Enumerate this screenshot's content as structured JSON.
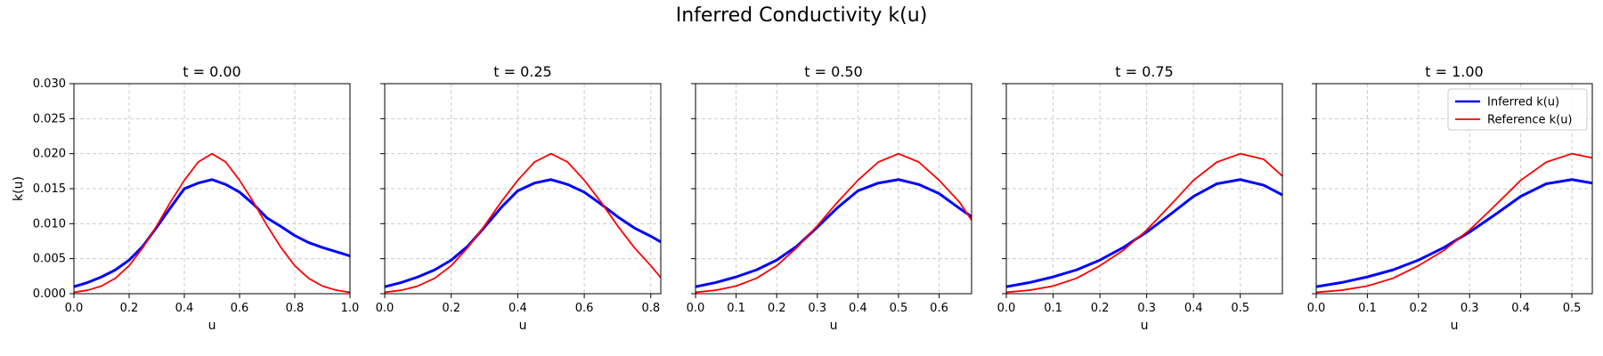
{
  "figure": {
    "title": "Inferred Conductivity k(u)"
  },
  "legend": {
    "inferred": "Inferred k(u)",
    "reference": "Reference k(u)"
  },
  "colors": {
    "inferred": "#0000ff",
    "reference": "#ff0000",
    "grid": "#cccccc"
  },
  "chart_data": [
    {
      "type": "line",
      "title": "t = 0.00",
      "xlabel": "u",
      "ylabel": "k(u)",
      "xlim": [
        0.0,
        1.0
      ],
      "ylim": [
        0.0,
        0.03
      ],
      "xticks": [
        0.0,
        0.2,
        0.4,
        0.6,
        0.8,
        1.0
      ],
      "xtick_labels": [
        "0.0",
        "0.2",
        "0.4",
        "0.6",
        "0.8",
        "1.0"
      ],
      "yticks": [
        0.0,
        0.005,
        0.01,
        0.015,
        0.02,
        0.025,
        0.03
      ],
      "ytick_labels": [
        "0.000",
        "0.005",
        "0.010",
        "0.015",
        "0.020",
        "0.025",
        "0.030"
      ],
      "grid": true,
      "series": [
        {
          "name": "Inferred k(u)",
          "x": [
            0.0,
            0.05,
            0.1,
            0.15,
            0.2,
            0.25,
            0.3,
            0.35,
            0.4,
            0.45,
            0.5,
            0.55,
            0.6,
            0.65,
            0.7,
            0.75,
            0.8,
            0.85,
            0.9,
            0.95,
            1.0
          ],
          "y": [
            0.001,
            0.0016,
            0.0024,
            0.0034,
            0.0048,
            0.0068,
            0.0095,
            0.0123,
            0.015,
            0.0158,
            0.0163,
            0.0156,
            0.0145,
            0.0128,
            0.0108,
            0.0096,
            0.0083,
            0.0073,
            0.0066,
            0.006,
            0.0054
          ]
        },
        {
          "name": "Reference k(u)",
          "x": [
            0.0,
            0.05,
            0.1,
            0.15,
            0.2,
            0.25,
            0.3,
            0.35,
            0.4,
            0.45,
            0.5,
            0.55,
            0.6,
            0.65,
            0.7,
            0.75,
            0.8,
            0.85,
            0.9,
            0.95,
            1.0
          ],
          "y": [
            0.0002,
            0.0005,
            0.0011,
            0.0022,
            0.004,
            0.0066,
            0.0097,
            0.0131,
            0.0162,
            0.0188,
            0.02,
            0.0188,
            0.0162,
            0.0131,
            0.0097,
            0.0066,
            0.004,
            0.0022,
            0.0011,
            0.0005,
            0.0002
          ]
        }
      ]
    },
    {
      "type": "line",
      "title": "t = 0.25",
      "xlabel": "u",
      "xlim": [
        0.0,
        0.83
      ],
      "ylim": [
        0.0,
        0.03
      ],
      "xticks": [
        0.0,
        0.2,
        0.4,
        0.6,
        0.8
      ],
      "xtick_labels": [
        "0.0",
        "0.2",
        "0.4",
        "0.6",
        "0.8"
      ],
      "yticks": [
        0.0,
        0.005,
        0.01,
        0.015,
        0.02,
        0.025,
        0.03
      ],
      "grid": true,
      "series": [
        {
          "name": "Inferred k(u)",
          "x": [
            0.0,
            0.05,
            0.1,
            0.15,
            0.2,
            0.25,
            0.3,
            0.35,
            0.4,
            0.45,
            0.5,
            0.55,
            0.6,
            0.65,
            0.7,
            0.75,
            0.8,
            0.83
          ],
          "y": [
            0.001,
            0.0016,
            0.0024,
            0.0034,
            0.0048,
            0.0068,
            0.0095,
            0.0123,
            0.0147,
            0.0158,
            0.0163,
            0.0156,
            0.0145,
            0.0128,
            0.011,
            0.0094,
            0.0082,
            0.0074
          ]
        },
        {
          "name": "Reference k(u)",
          "x": [
            0.0,
            0.05,
            0.1,
            0.15,
            0.2,
            0.25,
            0.3,
            0.35,
            0.4,
            0.45,
            0.5,
            0.55,
            0.6,
            0.65,
            0.7,
            0.75,
            0.8,
            0.83
          ],
          "y": [
            0.0002,
            0.0005,
            0.0011,
            0.0022,
            0.004,
            0.0066,
            0.0097,
            0.0131,
            0.0162,
            0.0188,
            0.02,
            0.0188,
            0.0162,
            0.0131,
            0.0097,
            0.0066,
            0.004,
            0.0023
          ]
        }
      ]
    },
    {
      "type": "line",
      "title": "t = 0.50",
      "xlabel": "u",
      "xlim": [
        0.0,
        0.68
      ],
      "ylim": [
        0.0,
        0.03
      ],
      "xticks": [
        0.0,
        0.1,
        0.2,
        0.3,
        0.4,
        0.5,
        0.6
      ],
      "xtick_labels": [
        "0.0",
        "0.1",
        "0.2",
        "0.3",
        "0.4",
        "0.5",
        "0.6"
      ],
      "yticks": [
        0.0,
        0.005,
        0.01,
        0.015,
        0.02,
        0.025,
        0.03
      ],
      "grid": true,
      "series": [
        {
          "name": "Inferred k(u)",
          "x": [
            0.0,
            0.05,
            0.1,
            0.15,
            0.2,
            0.25,
            0.3,
            0.35,
            0.4,
            0.45,
            0.5,
            0.55,
            0.6,
            0.65,
            0.68
          ],
          "y": [
            0.001,
            0.0016,
            0.0024,
            0.0034,
            0.0048,
            0.0068,
            0.0095,
            0.0123,
            0.0147,
            0.0158,
            0.0163,
            0.0156,
            0.0143,
            0.0122,
            0.011
          ]
        },
        {
          "name": "Reference k(u)",
          "x": [
            0.0,
            0.05,
            0.1,
            0.15,
            0.2,
            0.25,
            0.3,
            0.35,
            0.4,
            0.45,
            0.5,
            0.55,
            0.6,
            0.65,
            0.68
          ],
          "y": [
            0.0002,
            0.0005,
            0.0011,
            0.0022,
            0.004,
            0.0066,
            0.0097,
            0.0131,
            0.0162,
            0.0188,
            0.02,
            0.0188,
            0.0162,
            0.0131,
            0.0105
          ]
        }
      ]
    },
    {
      "type": "line",
      "title": "t = 0.75",
      "xlabel": "u",
      "xlim": [
        0.0,
        0.59
      ],
      "ylim": [
        0.0,
        0.03
      ],
      "xticks": [
        0.0,
        0.1,
        0.2,
        0.3,
        0.4,
        0.5
      ],
      "xtick_labels": [
        "0.0",
        "0.1",
        "0.2",
        "0.3",
        "0.4",
        "0.5"
      ],
      "yticks": [
        0.0,
        0.005,
        0.01,
        0.015,
        0.02,
        0.025,
        0.03
      ],
      "grid": true,
      "series": [
        {
          "name": "Inferred k(u)",
          "x": [
            0.0,
            0.05,
            0.1,
            0.15,
            0.2,
            0.25,
            0.3,
            0.35,
            0.4,
            0.45,
            0.5,
            0.55,
            0.59
          ],
          "y": [
            0.001,
            0.0016,
            0.0024,
            0.0034,
            0.0048,
            0.0066,
            0.0088,
            0.0113,
            0.0139,
            0.0157,
            0.0163,
            0.0155,
            0.0141
          ]
        },
        {
          "name": "Reference k(u)",
          "x": [
            0.0,
            0.05,
            0.1,
            0.15,
            0.2,
            0.25,
            0.3,
            0.35,
            0.4,
            0.45,
            0.5,
            0.55,
            0.59
          ],
          "y": [
            0.0002,
            0.0005,
            0.0011,
            0.0022,
            0.004,
            0.0062,
            0.0091,
            0.0126,
            0.0162,
            0.0188,
            0.02,
            0.0192,
            0.0168
          ]
        }
      ]
    },
    {
      "type": "line",
      "title": "t = 1.00",
      "xlabel": "u",
      "xlim": [
        0.0,
        0.54
      ],
      "ylim": [
        0.0,
        0.03
      ],
      "xticks": [
        0.0,
        0.1,
        0.2,
        0.3,
        0.4,
        0.5
      ],
      "xtick_labels": [
        "0.0",
        "0.1",
        "0.2",
        "0.3",
        "0.4",
        "0.5"
      ],
      "yticks": [
        0.0,
        0.005,
        0.01,
        0.015,
        0.02,
        0.025,
        0.03
      ],
      "grid": true,
      "legend": "top-right",
      "series": [
        {
          "name": "Inferred k(u)",
          "x": [
            0.0,
            0.05,
            0.1,
            0.15,
            0.2,
            0.25,
            0.3,
            0.35,
            0.4,
            0.45,
            0.5,
            0.54
          ],
          "y": [
            0.001,
            0.0016,
            0.0024,
            0.0034,
            0.0048,
            0.0066,
            0.0088,
            0.0113,
            0.0139,
            0.0157,
            0.0163,
            0.0158
          ]
        },
        {
          "name": "Reference k(u)",
          "x": [
            0.0,
            0.05,
            0.1,
            0.15,
            0.2,
            0.25,
            0.3,
            0.35,
            0.4,
            0.45,
            0.5,
            0.54
          ],
          "y": [
            0.0002,
            0.0005,
            0.0011,
            0.0022,
            0.004,
            0.0062,
            0.0091,
            0.0126,
            0.0162,
            0.0188,
            0.02,
            0.0194
          ]
        }
      ]
    }
  ]
}
